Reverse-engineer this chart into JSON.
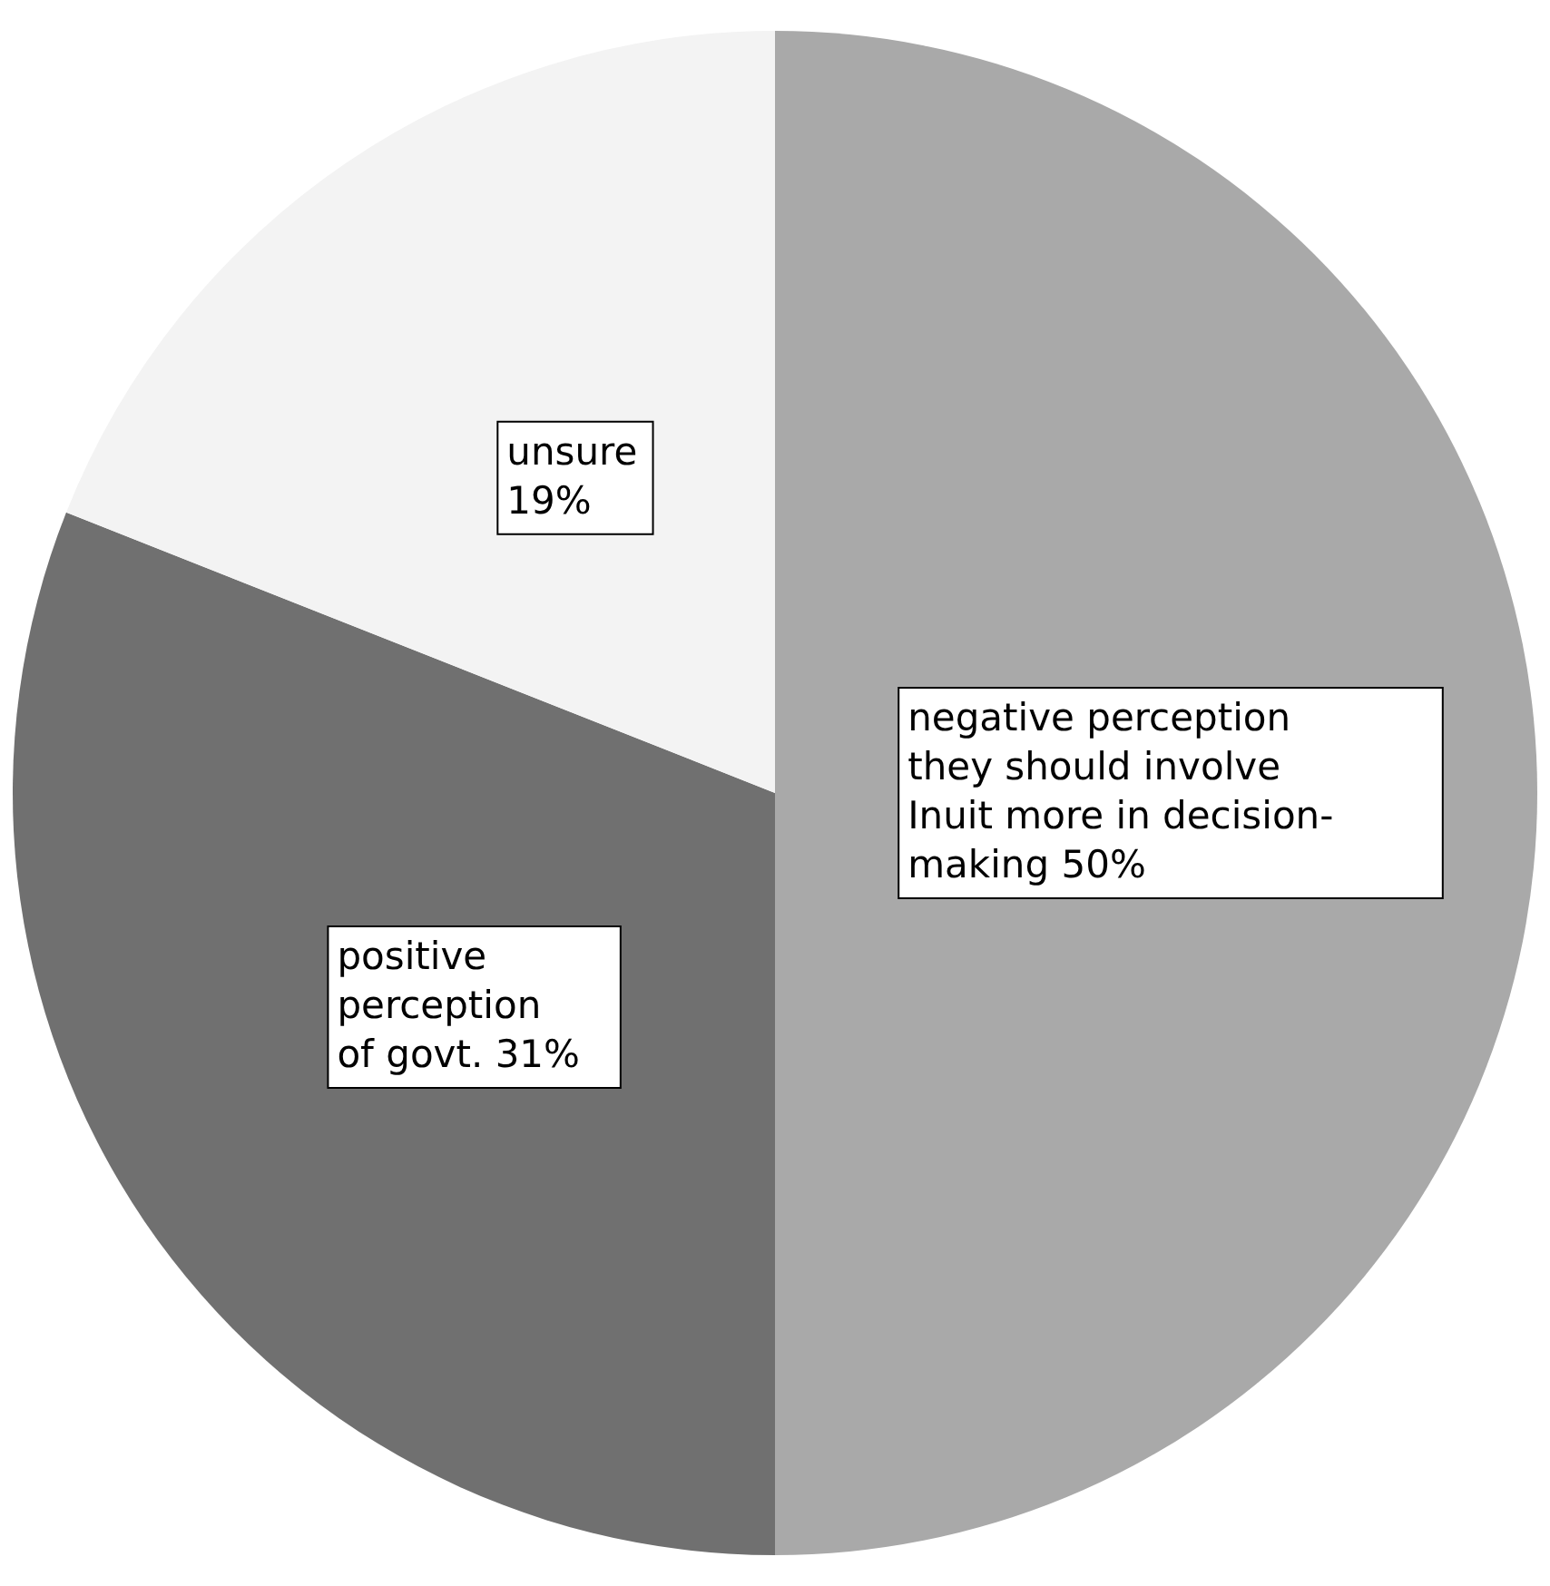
{
  "chart_data": {
    "type": "pie",
    "categories": [
      "negative perception they should involve Inuit more in decision-making",
      "positive perception of govt.",
      "unsure"
    ],
    "values": [
      50,
      31,
      19
    ],
    "value_labels": [
      "50%",
      "31%",
      "19%"
    ],
    "colors": [
      "#a9a9a9",
      "#707070",
      "#f3f3f3"
    ]
  }
}
